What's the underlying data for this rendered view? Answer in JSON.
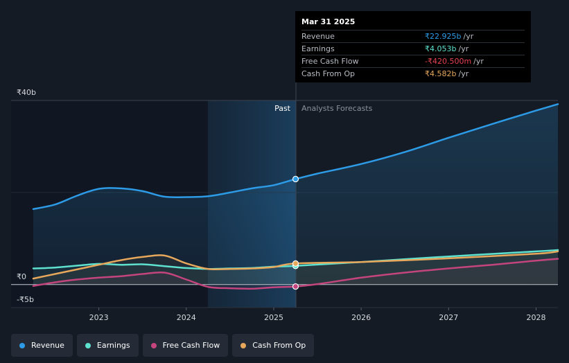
{
  "chart_data": {
    "type": "area",
    "currency_prefix": "₹",
    "y_unit": "b",
    "ylim": [
      -5,
      40
    ],
    "y_ticks": [
      {
        "value": 40,
        "label": "₹40b"
      },
      {
        "value": 0,
        "label": "₹0"
      },
      {
        "value": -5,
        "label": "-₹5b"
      }
    ],
    "x_range": [
      2022.25,
      2028.25
    ],
    "x_ticks": [
      {
        "value": 2023,
        "label": "2023"
      },
      {
        "value": 2024,
        "label": "2024"
      },
      {
        "value": 2025,
        "label": "2025"
      },
      {
        "value": 2026,
        "label": "2026"
      },
      {
        "value": 2027,
        "label": "2027"
      },
      {
        "value": 2028,
        "label": "2028"
      }
    ],
    "divider_x": 2025.25,
    "past_label": "Past",
    "forecast_label": "Analysts Forecasts",
    "series": [
      {
        "name": "Revenue",
        "color": "#2d9be6",
        "fill": true,
        "points": [
          [
            2022.25,
            16.4
          ],
          [
            2022.5,
            17.4
          ],
          [
            2022.75,
            19.3
          ],
          [
            2023.0,
            20.8
          ],
          [
            2023.25,
            20.9
          ],
          [
            2023.5,
            20.3
          ],
          [
            2023.75,
            19.1
          ],
          [
            2024.0,
            19.0
          ],
          [
            2024.25,
            19.2
          ],
          [
            2024.5,
            20.0
          ],
          [
            2024.75,
            20.9
          ],
          [
            2025.0,
            21.6
          ],
          [
            2025.25,
            22.925
          ],
          [
            2025.5,
            24.1
          ],
          [
            2026.0,
            26.2
          ],
          [
            2026.5,
            28.8
          ],
          [
            2027.0,
            31.9
          ],
          [
            2027.5,
            34.9
          ],
          [
            2028.0,
            37.8
          ],
          [
            2028.25,
            39.2
          ]
        ]
      },
      {
        "name": "Earnings",
        "color": "#5ee2cf",
        "fill": false,
        "points": [
          [
            2022.25,
            3.5
          ],
          [
            2022.5,
            3.7
          ],
          [
            2022.75,
            4.1
          ],
          [
            2023.0,
            4.5
          ],
          [
            2023.25,
            4.3
          ],
          [
            2023.5,
            4.4
          ],
          [
            2023.75,
            4.0
          ],
          [
            2024.0,
            3.6
          ],
          [
            2024.25,
            3.4
          ],
          [
            2024.5,
            3.5
          ],
          [
            2024.75,
            3.6
          ],
          [
            2025.0,
            3.9
          ],
          [
            2025.25,
            4.053
          ],
          [
            2026.0,
            4.9
          ],
          [
            2027.0,
            6.1
          ],
          [
            2028.0,
            7.2
          ],
          [
            2028.25,
            7.5
          ]
        ]
      },
      {
        "name": "Free Cash Flow",
        "color": "#c4457d",
        "fill": false,
        "points": [
          [
            2022.25,
            -0.3
          ],
          [
            2022.5,
            0.5
          ],
          [
            2022.75,
            1.1
          ],
          [
            2023.0,
            1.5
          ],
          [
            2023.25,
            1.8
          ],
          [
            2023.5,
            2.3
          ],
          [
            2023.75,
            2.6
          ],
          [
            2024.0,
            1.1
          ],
          [
            2024.25,
            -0.5
          ],
          [
            2024.5,
            -0.8
          ],
          [
            2024.75,
            -0.9
          ],
          [
            2025.0,
            -0.6
          ],
          [
            2025.25,
            -0.4205
          ],
          [
            2025.5,
            0.1
          ],
          [
            2026.0,
            1.5
          ],
          [
            2026.5,
            2.6
          ],
          [
            2027.0,
            3.5
          ],
          [
            2027.5,
            4.3
          ],
          [
            2028.0,
            5.2
          ],
          [
            2028.25,
            5.6
          ]
        ]
      },
      {
        "name": "Cash From Op",
        "color": "#e7a85c",
        "fill": false,
        "points": [
          [
            2022.25,
            1.3
          ],
          [
            2022.5,
            2.3
          ],
          [
            2022.75,
            3.3
          ],
          [
            2023.0,
            4.3
          ],
          [
            2023.25,
            5.3
          ],
          [
            2023.5,
            6.0
          ],
          [
            2023.75,
            6.3
          ],
          [
            2024.0,
            4.6
          ],
          [
            2024.25,
            3.4
          ],
          [
            2024.5,
            3.4
          ],
          [
            2024.75,
            3.5
          ],
          [
            2025.0,
            3.8
          ],
          [
            2025.25,
            4.582
          ],
          [
            2026.0,
            4.9
          ],
          [
            2027.0,
            5.7
          ],
          [
            2028.0,
            6.7
          ],
          [
            2028.25,
            7.2
          ]
        ]
      }
    ]
  },
  "tooltip": {
    "date": "Mar 31 2025",
    "rows": [
      {
        "label": "Revenue",
        "value": "₹22.925b",
        "unit": "/yr",
        "color": "#2d9be6"
      },
      {
        "label": "Earnings",
        "value": "₹4.053b",
        "unit": "/yr",
        "color": "#5ee2cf"
      },
      {
        "label": "Free Cash Flow",
        "value": "-₹420.500m",
        "unit": "/yr",
        "color": "#e8424f"
      },
      {
        "label": "Cash From Op",
        "value": "₹4.582b",
        "unit": "/yr",
        "color": "#e7a85c"
      }
    ]
  },
  "legend": [
    {
      "label": "Revenue",
      "color": "#2d9be6"
    },
    {
      "label": "Earnings",
      "color": "#5ee2cf"
    },
    {
      "label": "Free Cash Flow",
      "color": "#c4457d"
    },
    {
      "label": "Cash From Op",
      "color": "#e7a85c"
    }
  ]
}
